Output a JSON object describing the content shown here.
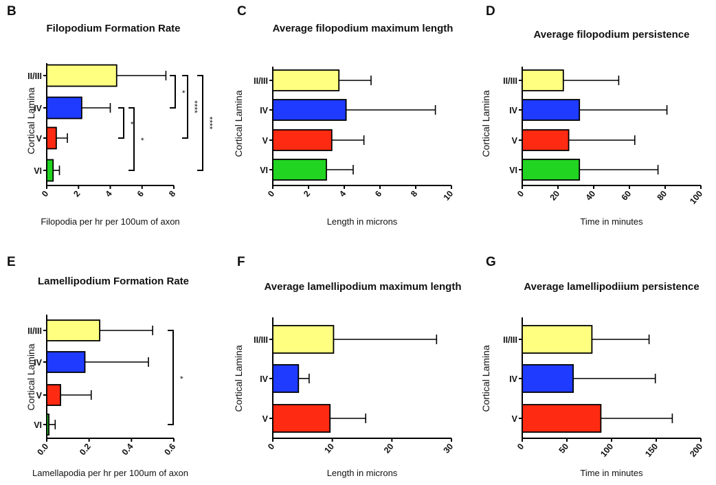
{
  "colors": {
    "II/III": "#ffff80",
    "IV": "#1f3bff",
    "V": "#ff2a12",
    "VI": "#22d422",
    "axis": "#000000"
  },
  "chart_data": [
    {
      "panel": "B",
      "type": "bar",
      "orientation": "horizontal",
      "title": "Filopodium Formation Rate",
      "xlabel": "Filopodia per hr per 100um of axon",
      "ylabel": "Cortical Lamina",
      "categories": [
        "II/III",
        "IV",
        "V",
        "VI"
      ],
      "values": [
        4.4,
        2.2,
        0.6,
        0.4
      ],
      "errors": [
        3.1,
        1.8,
        0.7,
        0.4
      ],
      "xlim": [
        0,
        8
      ],
      "xticks": [
        "0",
        "2",
        "4",
        "6",
        "8"
      ],
      "significance": [
        {
          "from": "II/III",
          "to": "IV",
          "label": "*"
        },
        {
          "from": "IV",
          "to": "V",
          "label": "*"
        },
        {
          "from": "IV",
          "to": "VI",
          "label": "*"
        },
        {
          "from": "II/III",
          "to": "V",
          "label": "****"
        },
        {
          "from": "II/III",
          "to": "VI",
          "label": "****"
        }
      ]
    },
    {
      "panel": "C",
      "type": "bar",
      "orientation": "horizontal",
      "title": "Average filopodium maximum length",
      "xlabel": "Length in microns",
      "ylabel": "Cortical Lamina",
      "categories": [
        "II/III",
        "IV",
        "V",
        "VI"
      ],
      "values": [
        3.7,
        4.1,
        3.3,
        3.0
      ],
      "errors": [
        1.8,
        5.0,
        1.8,
        1.5
      ],
      "xlim": [
        0,
        10
      ],
      "xticks": [
        "0",
        "2",
        "4",
        "6",
        "8",
        "10"
      ],
      "significance": []
    },
    {
      "panel": "D",
      "type": "bar",
      "orientation": "horizontal",
      "title": "Average filopodium persistence",
      "xlabel": "Time in minutes",
      "ylabel": "Cortical Lamina",
      "categories": [
        "II/III",
        "IV",
        "V",
        "VI"
      ],
      "values": [
        23,
        32,
        26,
        32
      ],
      "errors": [
        31,
        49,
        37,
        44
      ],
      "xlim": [
        0,
        100
      ],
      "xticks": [
        "0",
        "20",
        "40",
        "60",
        "80",
        "100"
      ],
      "significance": []
    },
    {
      "panel": "E",
      "type": "bar",
      "orientation": "horizontal",
      "title": "Lamellipodium Formation Rate",
      "xlabel": "Lamellapodia per hr per 100um of axon",
      "ylabel": "Cortical Lamina",
      "categories": [
        "II/III",
        "IV",
        "V",
        "VI"
      ],
      "values": [
        0.25,
        0.18,
        0.065,
        0.01
      ],
      "errors": [
        0.25,
        0.3,
        0.145,
        0.03
      ],
      "xlim": [
        0,
        0.6
      ],
      "xticks": [
        "0.0",
        "0.2",
        "0.4",
        "0.6"
      ],
      "significance": [
        {
          "from": "II/III",
          "to": "VI",
          "label": "*"
        }
      ]
    },
    {
      "panel": "F",
      "type": "bar",
      "orientation": "horizontal",
      "title": "Average lamellipodium maximum length",
      "xlabel": "Length in microns",
      "ylabel": "Cortical Lamina",
      "categories": [
        "II/III",
        "IV",
        "V"
      ],
      "values": [
        10.2,
        4.3,
        9.6
      ],
      "errors": [
        17.3,
        1.8,
        6.0
      ],
      "xlim": [
        0,
        30
      ],
      "xticks": [
        "0",
        "10",
        "20",
        "30"
      ],
      "significance": []
    },
    {
      "panel": "G",
      "type": "bar",
      "orientation": "horizontal",
      "title": "Average lamellipodiium persistence",
      "xlabel": "Time in minutes",
      "ylabel": "Cortical Lamina",
      "categories": [
        "II/III",
        "IV",
        "V"
      ],
      "values": [
        78,
        57,
        88
      ],
      "errors": [
        64,
        92,
        80
      ],
      "xlim": [
        0,
        200
      ],
      "xticks": [
        "0",
        "50",
        "100",
        "150",
        "200"
      ],
      "significance": []
    }
  ]
}
